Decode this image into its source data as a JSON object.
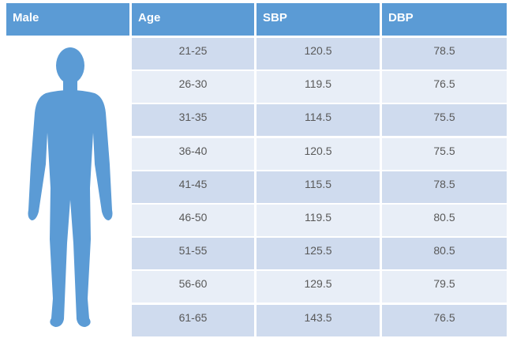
{
  "table": {
    "headers": [
      "Male",
      "Age",
      "SBP",
      "DBP"
    ],
    "rows": [
      {
        "age": "21-25",
        "sbp": "120.5",
        "dbp": "78.5"
      },
      {
        "age": "26-30",
        "sbp": "119.5",
        "dbp": "76.5"
      },
      {
        "age": "31-35",
        "sbp": "114.5",
        "dbp": "75.5"
      },
      {
        "age": "36-40",
        "sbp": "120.5",
        "dbp": "75.5"
      },
      {
        "age": "41-45",
        "sbp": "115.5",
        "dbp": "78.5"
      },
      {
        "age": "46-50",
        "sbp": "119.5",
        "dbp": "80.5"
      },
      {
        "age": "51-55",
        "sbp": "125.5",
        "dbp": "80.5"
      },
      {
        "age": "56-60",
        "sbp": "129.5",
        "dbp": "79.5"
      },
      {
        "age": "61-65",
        "sbp": "143.5",
        "dbp": "76.5"
      }
    ]
  },
  "colors": {
    "header": "#5b9bd5",
    "row_dark": "#cfdbee",
    "row_light": "#e8eef7",
    "figure": "#5b9bd5"
  },
  "icons": {
    "figure": "male-silhouette-icon"
  }
}
